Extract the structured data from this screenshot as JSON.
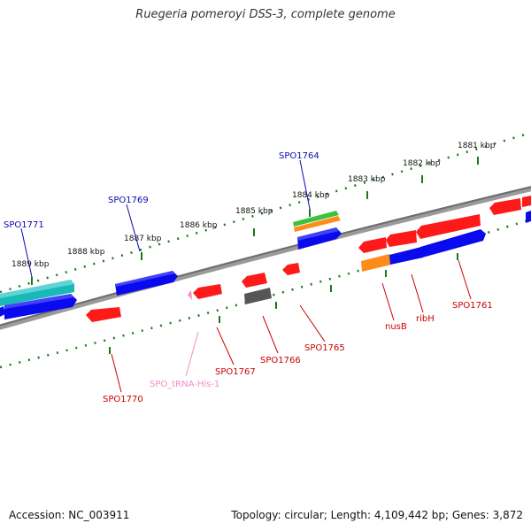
{
  "title": "Ruegeria pomeroyi DSS-3, complete genome",
  "footer": {
    "accession": "Accession: NC_003911",
    "summary": "Topology: circular; Length: 4,109,442 bp; Genes: 3,872"
  },
  "scale_labels": [
    "1881 kbp",
    "1882 kbp",
    "1883 kbp",
    "1884 kbp",
    "1885 kbp",
    "1886 kbp",
    "1887 kbp",
    "1888 kbp",
    "1889 kbp"
  ],
  "gene_labels": {
    "spo1764": "SPO1764",
    "spo1769": "SPO1769",
    "spo1771": "SPO1771",
    "nusb": "nusB",
    "ribh": "ribH",
    "spo1761": "SPO1761",
    "spo1765": "SPO1765",
    "spo1766": "SPO1766",
    "spo1767": "SPO1767",
    "trna": "SPO_tRNA-His-1",
    "spo1770": "SPO1770"
  },
  "colors": {
    "backbone": "#808080",
    "tick": "#1a7a1a",
    "red": "#ff1a1a",
    "blue": "#0a0aee",
    "cyan": "#1ab8b8",
    "green": "#3cc33c",
    "orange": "#ff8c1a",
    "gray": "#555555",
    "pink": "#f28cc8",
    "label_blue": "#0a0aaa",
    "label_red": "#cc0000"
  }
}
